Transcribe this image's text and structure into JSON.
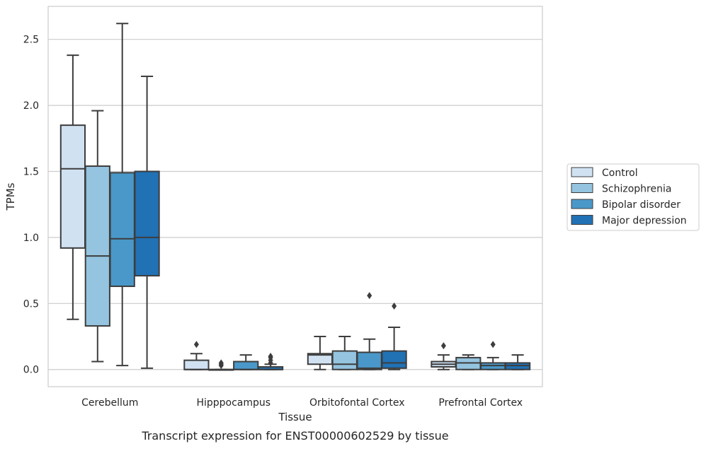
{
  "chart_data": {
    "type": "box",
    "title": "Transcript expression for ENST00000602529 by tissue",
    "xlabel": "Tissue",
    "ylabel": "TPMs",
    "ylim": [
      -0.13,
      2.75
    ],
    "yticks": [
      0.0,
      0.5,
      1.0,
      1.5,
      2.0,
      2.5
    ],
    "ytick_labels": [
      "0.0",
      "0.5",
      "1.0",
      "1.5",
      "2.0",
      "2.5"
    ],
    "grid": true,
    "legend_position": "right",
    "categories": [
      "Cerebellum",
      "Hipppocampus",
      "Orbitofontal Cortex",
      "Prefrontal Cortex"
    ],
    "series": [
      {
        "name": "Control",
        "color": "#d0e1f2",
        "boxes": [
          {
            "q1": 0.92,
            "median": 1.52,
            "q3": 1.85,
            "whisker_low": 0.38,
            "whisker_high": 2.38,
            "outliers": []
          },
          {
            "q1": 0.0,
            "median": 0.0,
            "q3": 0.07,
            "whisker_low": 0.0,
            "whisker_high": 0.12,
            "outliers": [
              0.19
            ]
          },
          {
            "q1": 0.04,
            "median": 0.11,
            "q3": 0.12,
            "whisker_low": 0.0,
            "whisker_high": 0.25,
            "outliers": []
          },
          {
            "q1": 0.02,
            "median": 0.04,
            "q3": 0.06,
            "whisker_low": 0.0,
            "whisker_high": 0.11,
            "outliers": [
              0.18
            ]
          }
        ]
      },
      {
        "name": "Schizophrenia",
        "color": "#94c4df",
        "boxes": [
          {
            "q1": 0.33,
            "median": 0.86,
            "q3": 1.54,
            "whisker_low": 0.06,
            "whisker_high": 1.96,
            "outliers": []
          },
          {
            "q1": 0.0,
            "median": 0.0,
            "q3": 0.0,
            "whisker_low": 0.0,
            "whisker_high": 0.0,
            "outliers": [
              0.03,
              0.04,
              0.05
            ]
          },
          {
            "q1": 0.0,
            "median": 0.04,
            "q3": 0.14,
            "whisker_low": 0.0,
            "whisker_high": 0.25,
            "outliers": []
          },
          {
            "q1": 0.0,
            "median": 0.05,
            "q3": 0.09,
            "whisker_low": 0.0,
            "whisker_high": 0.11,
            "outliers": []
          }
        ]
      },
      {
        "name": "Bipolar disorder",
        "color": "#4a98c9",
        "boxes": [
          {
            "q1": 0.63,
            "median": 0.99,
            "q3": 1.49,
            "whisker_low": 0.03,
            "whisker_high": 2.62,
            "outliers": []
          },
          {
            "q1": 0.0,
            "median": 0.0,
            "q3": 0.06,
            "whisker_low": 0.0,
            "whisker_high": 0.11,
            "outliers": []
          },
          {
            "q1": 0.0,
            "median": 0.01,
            "q3": 0.13,
            "whisker_low": 0.0,
            "whisker_high": 0.23,
            "outliers": [
              0.56
            ]
          },
          {
            "q1": 0.0,
            "median": 0.03,
            "q3": 0.05,
            "whisker_low": 0.0,
            "whisker_high": 0.09,
            "outliers": [
              0.19
            ]
          }
        ]
      },
      {
        "name": "Major depression",
        "color": "#2171b5",
        "boxes": [
          {
            "q1": 0.71,
            "median": 1.0,
            "q3": 1.5,
            "whisker_low": 0.01,
            "whisker_high": 2.22,
            "outliers": []
          },
          {
            "q1": 0.0,
            "median": 0.0,
            "q3": 0.02,
            "whisker_low": 0.0,
            "whisker_high": 0.04,
            "outliers": [
              0.05,
              0.07,
              0.09,
              0.1
            ]
          },
          {
            "q1": 0.01,
            "median": 0.05,
            "q3": 0.14,
            "whisker_low": 0.0,
            "whisker_high": 0.32,
            "outliers": [
              0.48
            ]
          },
          {
            "q1": 0.0,
            "median": 0.03,
            "q3": 0.05,
            "whisker_low": 0.0,
            "whisker_high": 0.11,
            "outliers": []
          }
        ]
      }
    ]
  }
}
